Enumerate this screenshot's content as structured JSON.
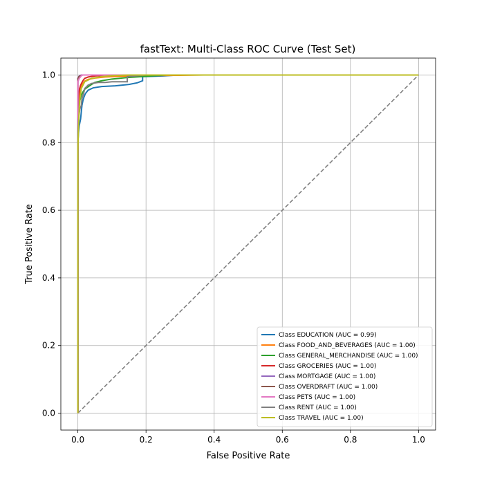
{
  "chart_data": {
    "type": "line",
    "title": "fastText: Multi-Class ROC Curve (Test Set)",
    "xlabel": "False Positive Rate",
    "ylabel": "True Positive Rate",
    "xlim": [
      -0.05,
      1.05
    ],
    "ylim": [
      -0.05,
      1.05
    ],
    "xticks": [
      "0.0",
      "0.2",
      "0.4",
      "0.6",
      "0.8",
      "1.0"
    ],
    "yticks": [
      "0.0",
      "0.2",
      "0.4",
      "0.6",
      "0.8",
      "1.0"
    ],
    "grid": true,
    "legend_position": "lower-right",
    "series": [
      {
        "name": "Class EDUCATION (AUC = 0.99)",
        "color": "#1f77b4",
        "x": [
          0,
          0,
          0.002,
          0.004,
          0.006,
          0.008,
          0.01,
          0.012,
          0.015,
          0.018,
          0.022,
          0.03,
          0.045,
          0.07,
          0.11,
          0.15,
          0.175,
          0.19,
          0.19,
          0.25,
          0.3,
          1.0
        ],
        "y": [
          0,
          0.8,
          0.83,
          0.85,
          0.86,
          0.87,
          0.89,
          0.91,
          0.925,
          0.935,
          0.945,
          0.955,
          0.962,
          0.966,
          0.968,
          0.972,
          0.977,
          0.983,
          0.995,
          0.997,
          1.0,
          1.0
        ]
      },
      {
        "name": "Class FOOD_AND_BEVERAGES (AUC = 1.00)",
        "color": "#ff7f0e",
        "x": [
          0,
          0,
          0.002,
          0.005,
          0.01,
          0.015,
          0.02,
          0.03,
          0.05,
          0.08,
          0.12,
          0.2,
          0.3,
          0.37,
          1.0
        ],
        "y": [
          0,
          0.86,
          0.92,
          0.95,
          0.965,
          0.975,
          0.982,
          0.987,
          0.991,
          0.994,
          0.996,
          0.998,
          0.999,
          1.0,
          1.0
        ]
      },
      {
        "name": "Class GENERAL_MERCHANDISE (AUC = 1.00)",
        "color": "#2ca02c",
        "x": [
          0,
          0,
          0.003,
          0.006,
          0.01,
          0.015,
          0.02,
          0.03,
          0.04,
          0.05,
          0.07,
          0.1,
          0.14,
          0.2,
          0.26,
          1.0
        ],
        "y": [
          0,
          0.85,
          0.9,
          0.925,
          0.94,
          0.95,
          0.958,
          0.965,
          0.972,
          0.978,
          0.983,
          0.988,
          0.992,
          0.996,
          1.0,
          1.0
        ]
      },
      {
        "name": "Class GROCERIES (AUC = 1.00)",
        "color": "#d62728",
        "x": [
          0,
          0,
          0.002,
          0.005,
          0.008,
          0.012,
          0.016,
          0.02,
          0.03,
          0.05,
          0.1,
          1.0
        ],
        "y": [
          0,
          0.9,
          0.94,
          0.96,
          0.97,
          0.978,
          0.985,
          0.99,
          0.994,
          0.997,
          1.0,
          1.0
        ]
      },
      {
        "name": "Class MORTGAGE (AUC = 1.00)",
        "color": "#9467bd",
        "x": [
          0,
          0,
          0.002,
          0.005,
          0.01,
          0.02,
          1.0
        ],
        "y": [
          0,
          0.99,
          0.995,
          0.998,
          1.0,
          1.0,
          1.0
        ]
      },
      {
        "name": "Class OVERDRAFT (AUC = 1.00)",
        "color": "#8c564b",
        "x": [
          0,
          0,
          0.003,
          0.008,
          0.015,
          1.0
        ],
        "y": [
          0,
          0.99,
          0.995,
          0.998,
          1.0,
          1.0
        ]
      },
      {
        "name": "Class PETS (AUC = 1.00)",
        "color": "#e377c2",
        "x": [
          0,
          0,
          0.004,
          0.008,
          0.012,
          1.0
        ],
        "y": [
          0,
          0.98,
          0.99,
          0.995,
          1.0,
          1.0
        ]
      },
      {
        "name": "Class RENT (AUC = 1.00)",
        "color": "#7f7f7f",
        "x": [
          0,
          0,
          0.003,
          0.006,
          0.01,
          0.012,
          0.015,
          0.018,
          0.02,
          0.025,
          0.03,
          0.04,
          0.06,
          0.08,
          0.1,
          0.145,
          0.145,
          0.2,
          1.0
        ],
        "y": [
          0,
          0.83,
          0.88,
          0.9,
          0.91,
          0.93,
          0.94,
          0.95,
          0.96,
          0.965,
          0.97,
          0.975,
          0.978,
          0.978,
          0.98,
          0.98,
          0.995,
          1.0,
          1.0
        ]
      },
      {
        "name": "Class TRAVEL (AUC = 1.00)",
        "color": "#bcbd22",
        "x": [
          0,
          0,
          0.002,
          0.004,
          0.006,
          0.01,
          0.02,
          0.04,
          0.07,
          0.1,
          0.15,
          1.0
        ],
        "y": [
          0,
          0.78,
          0.85,
          0.9,
          0.93,
          0.96,
          0.98,
          0.99,
          0.995,
          0.998,
          1.0,
          1.0
        ]
      }
    ],
    "diagonal": {
      "color": "#808080",
      "x": [
        0,
        1
      ],
      "y": [
        0,
        1
      ]
    }
  }
}
